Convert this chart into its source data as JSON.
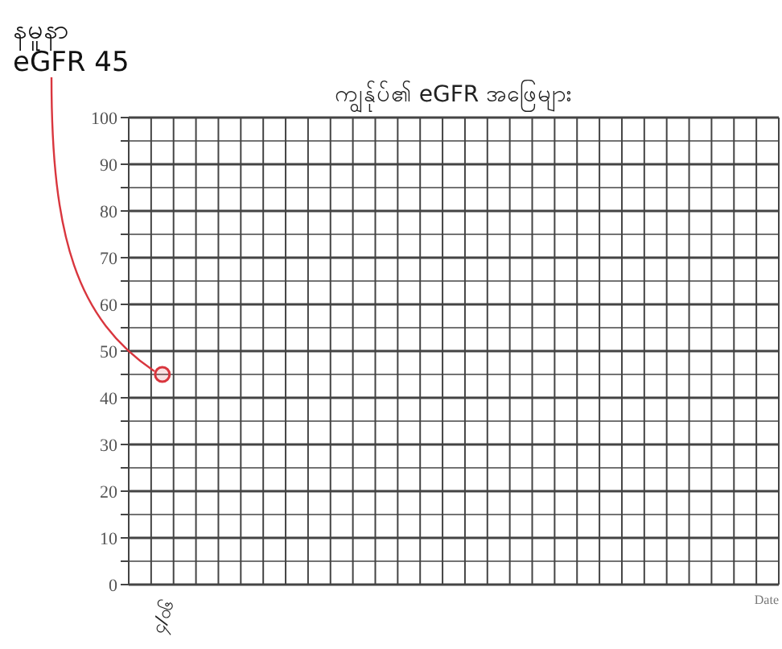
{
  "chart_data": {
    "type": "scatter",
    "title": "ကျွန်ုပ်၏ eGFR အဖြေများ",
    "xlabel": "Date",
    "categories": [
      null,
      "၄/၀၆",
      null,
      null,
      null,
      null,
      null,
      null,
      null,
      null,
      null,
      null,
      null,
      null,
      null,
      null,
      null,
      null,
      null,
      null,
      null,
      null,
      null,
      null,
      null,
      null,
      null,
      null,
      null
    ],
    "series": [
      {
        "color": "#d9363e",
        "values": [
          null,
          45,
          null,
          null,
          null,
          null,
          null,
          null,
          null,
          null,
          null,
          null,
          null,
          null,
          null,
          null,
          null,
          null,
          null,
          null,
          null,
          null,
          null,
          null,
          null,
          null,
          null,
          null,
          null
        ]
      }
    ],
    "ylim": [
      0,
      100
    ],
    "yticks": [
      0,
      {
        "value": 5,
        "label": null
      },
      10,
      {
        "value": 15,
        "label": null
      },
      20,
      {
        "value": 25,
        "label": null
      },
      30,
      {
        "value": 35,
        "label": null
      },
      40,
      {
        "value": 45,
        "label": null
      },
      50,
      {
        "value": 55,
        "label": null
      },
      60,
      {
        "value": 65,
        "label": null
      },
      70,
      {
        "value": 75,
        "label": null
      },
      80,
      {
        "value": 85,
        "label": null
      },
      90,
      {
        "value": 95,
        "label": null
      },
      100
    ],
    "grid": true,
    "marker": "circle",
    "annotations": [
      {
        "text": "နမူနာ\neGFR 45",
        "x": "၄/၀၆",
        "y": 45
      }
    ]
  }
}
